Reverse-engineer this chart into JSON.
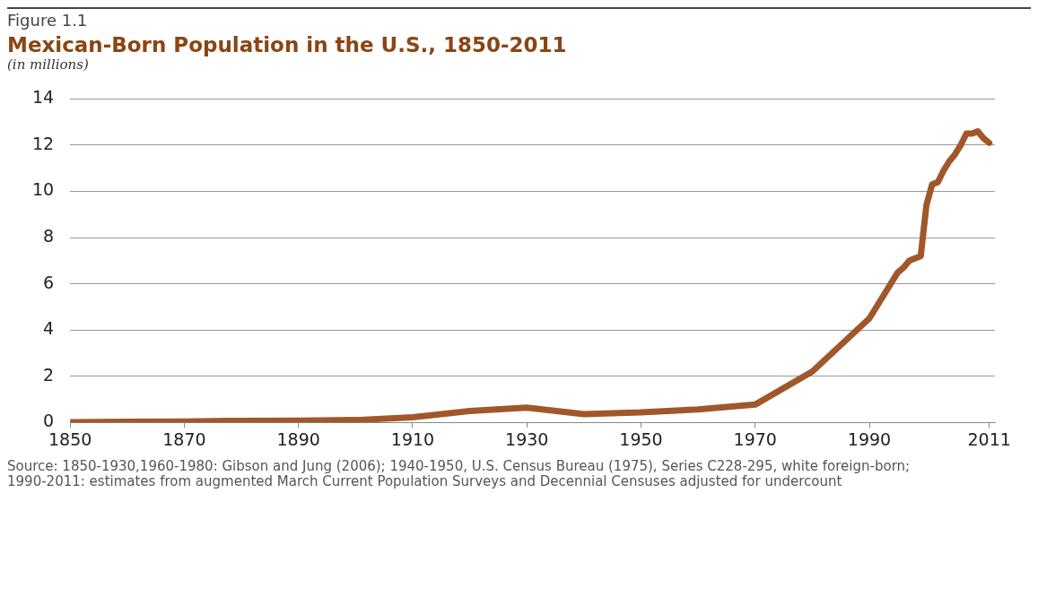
{
  "chart_data": {
    "type": "line",
    "title": "Mexican-Born Population in the U.S., 1850-2011",
    "subtitle": "(in millions)",
    "annotations": [
      "Figure 1.1",
      "Source: 1850-1930,1960-1980: Gibson and Jung (2006); 1940-1950, U.S. Census Bureau (1975), Series C228-295, white foreign-born; 1990-2011: estimates from augmented March Current Population Surveys and Decennial Censuses adjusted for undercount"
    ],
    "x": [
      1850,
      1860,
      1870,
      1880,
      1890,
      1900,
      1910,
      1920,
      1930,
      1940,
      1950,
      1960,
      1970,
      1980,
      1990,
      1995,
      1996,
      1997,
      1998,
      1999,
      2000,
      2001,
      2002,
      2003,
      2004,
      2005,
      2006,
      2007,
      2008,
      2009,
      2010,
      2011
    ],
    "series": [
      {
        "color": "#a0582a",
        "values": [
          0.01,
          0.03,
          0.04,
          0.07,
          0.08,
          0.1,
          0.22,
          0.49,
          0.64,
          0.36,
          0.43,
          0.56,
          0.77,
          2.2,
          4.5,
          6.5,
          6.7,
          7.0,
          7.1,
          7.2,
          9.4,
          10.3,
          10.4,
          10.9,
          11.3,
          11.6,
          12.0,
          12.5,
          12.5,
          12.6,
          12.3,
          12.1
        ]
      }
    ],
    "xlim": [
      1850,
      2012
    ],
    "xticks": [
      1850,
      1870,
      1890,
      1910,
      1930,
      1950,
      1970,
      1990,
      2011
    ],
    "ylim": [
      0,
      14
    ],
    "yticks": [
      0,
      2,
      4,
      6,
      8,
      10,
      12,
      14
    ],
    "grid": "y",
    "legend": false,
    "marker": "none",
    "line_style": "solid"
  }
}
